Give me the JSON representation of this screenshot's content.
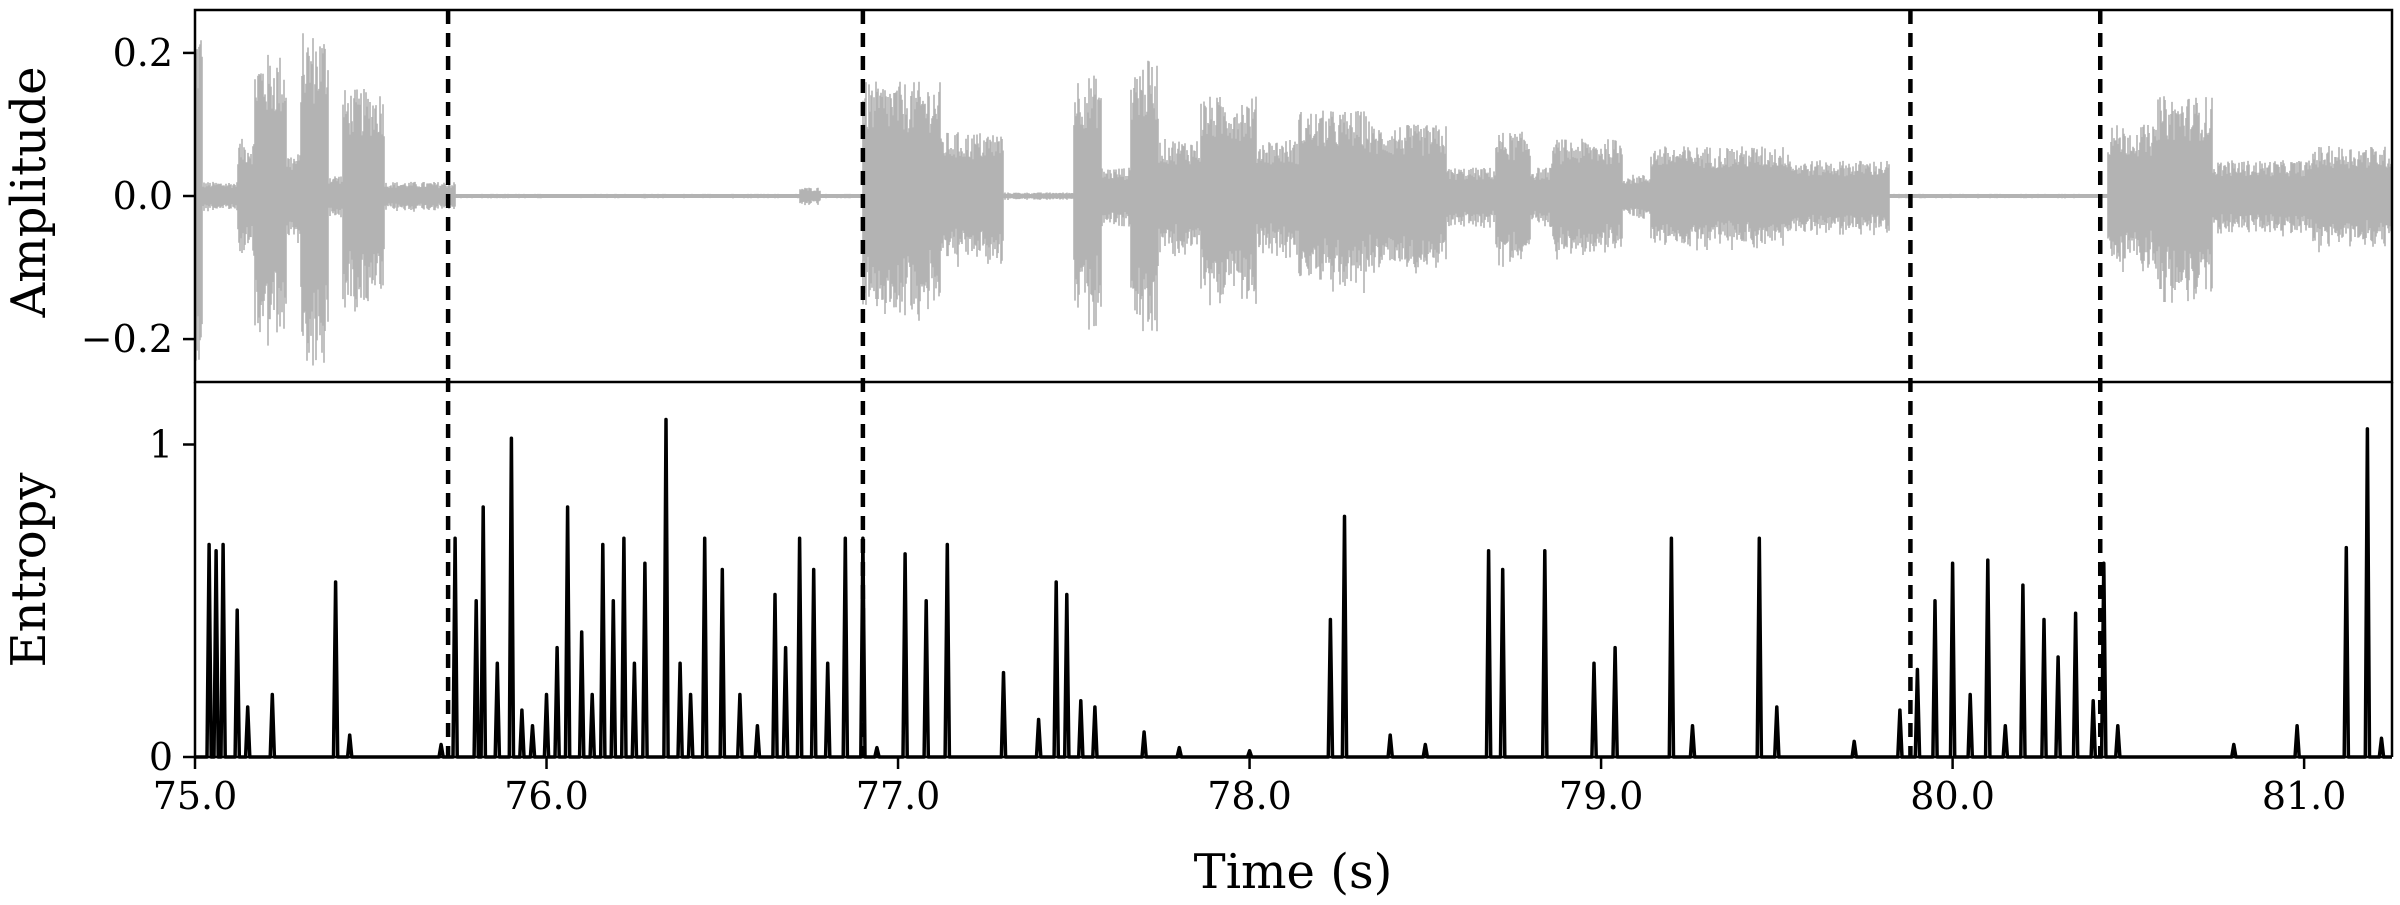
{
  "chart_data": [
    {
      "type": "line",
      "panel": "waveform",
      "ylabel": "Amplitude",
      "xlim": [
        75.0,
        81.25
      ],
      "ylim": [
        -0.26,
        0.26
      ],
      "yticks": [
        {
          "value": -0.2,
          "label": "−0.2"
        },
        {
          "value": 0.0,
          "label": "0.0"
        },
        {
          "value": 0.2,
          "label": "0.2"
        }
      ],
      "line_color": "#b3b3b3",
      "grid": false,
      "segments": [
        {
          "start": 75.0,
          "end": 75.02,
          "amp": 0.24
        },
        {
          "start": 75.02,
          "end": 75.12,
          "amp": 0.02
        },
        {
          "start": 75.12,
          "end": 75.17,
          "amp": 0.08
        },
        {
          "start": 75.17,
          "end": 75.26,
          "amp": 0.2
        },
        {
          "start": 75.26,
          "end": 75.3,
          "amp": 0.06
        },
        {
          "start": 75.3,
          "end": 75.38,
          "amp": 0.23
        },
        {
          "start": 75.38,
          "end": 75.42,
          "amp": 0.03
        },
        {
          "start": 75.42,
          "end": 75.54,
          "amp": 0.15
        },
        {
          "start": 75.54,
          "end": 75.74,
          "amp": 0.02
        },
        {
          "start": 75.74,
          "end": 76.72,
          "amp": 0.003
        },
        {
          "start": 76.72,
          "end": 76.78,
          "amp": 0.012
        },
        {
          "start": 76.78,
          "end": 76.9,
          "amp": 0.003
        },
        {
          "start": 76.9,
          "end": 77.12,
          "amp": 0.16
        },
        {
          "start": 77.12,
          "end": 77.3,
          "amp": 0.09
        },
        {
          "start": 77.3,
          "end": 77.5,
          "amp": 0.005
        },
        {
          "start": 77.5,
          "end": 77.58,
          "amp": 0.17
        },
        {
          "start": 77.58,
          "end": 77.66,
          "amp": 0.04
        },
        {
          "start": 77.66,
          "end": 77.74,
          "amp": 0.19
        },
        {
          "start": 77.74,
          "end": 77.86,
          "amp": 0.08
        },
        {
          "start": 77.86,
          "end": 78.02,
          "amp": 0.14
        },
        {
          "start": 78.02,
          "end": 78.14,
          "amp": 0.08
        },
        {
          "start": 78.14,
          "end": 78.34,
          "amp": 0.12
        },
        {
          "start": 78.34,
          "end": 78.56,
          "amp": 0.1
        },
        {
          "start": 78.56,
          "end": 78.7,
          "amp": 0.04
        },
        {
          "start": 78.7,
          "end": 78.8,
          "amp": 0.09
        },
        {
          "start": 78.8,
          "end": 78.86,
          "amp": 0.04
        },
        {
          "start": 78.86,
          "end": 79.06,
          "amp": 0.08
        },
        {
          "start": 79.06,
          "end": 79.14,
          "amp": 0.03
        },
        {
          "start": 79.14,
          "end": 79.38,
          "amp": 0.07
        },
        {
          "start": 79.38,
          "end": 79.54,
          "amp": 0.07
        },
        {
          "start": 79.54,
          "end": 79.82,
          "amp": 0.05
        },
        {
          "start": 79.82,
          "end": 80.44,
          "amp": 0.003
        },
        {
          "start": 80.44,
          "end": 80.58,
          "amp": 0.1
        },
        {
          "start": 80.58,
          "end": 80.74,
          "amp": 0.14
        },
        {
          "start": 80.74,
          "end": 81.02,
          "amp": 0.05
        },
        {
          "start": 81.02,
          "end": 81.25,
          "amp": 0.07
        }
      ]
    },
    {
      "type": "line",
      "panel": "entropy",
      "xlabel": "Time (s)",
      "ylabel": "Entropy",
      "xlim": [
        75.0,
        81.25
      ],
      "ylim": [
        0,
        1.2
      ],
      "xticks": [
        {
          "value": 75.0,
          "label": "75.0"
        },
        {
          "value": 76.0,
          "label": "76.0"
        },
        {
          "value": 77.0,
          "label": "77.0"
        },
        {
          "value": 78.0,
          "label": "78.0"
        },
        {
          "value": 79.0,
          "label": "79.0"
        },
        {
          "value": 80.0,
          "label": "80.0"
        },
        {
          "value": 81.0,
          "label": "81.0"
        }
      ],
      "yticks": [
        {
          "value": 0,
          "label": "0"
        },
        {
          "value": 1,
          "label": "1"
        }
      ],
      "line_color": "#000000",
      "grid": false,
      "spikes": [
        [
          75.04,
          0.68
        ],
        [
          75.06,
          0.66
        ],
        [
          75.08,
          0.68
        ],
        [
          75.12,
          0.47
        ],
        [
          75.15,
          0.16
        ],
        [
          75.22,
          0.2
        ],
        [
          75.4,
          0.56
        ],
        [
          75.44,
          0.07
        ],
        [
          75.7,
          0.04
        ],
        [
          75.74,
          0.7
        ],
        [
          75.8,
          0.5
        ],
        [
          75.82,
          0.8
        ],
        [
          75.86,
          0.3
        ],
        [
          75.9,
          1.02
        ],
        [
          75.93,
          0.15
        ],
        [
          75.96,
          0.1
        ],
        [
          76.0,
          0.2
        ],
        [
          76.03,
          0.35
        ],
        [
          76.06,
          0.8
        ],
        [
          76.1,
          0.4
        ],
        [
          76.13,
          0.2
        ],
        [
          76.16,
          0.68
        ],
        [
          76.19,
          0.5
        ],
        [
          76.22,
          0.7
        ],
        [
          76.25,
          0.3
        ],
        [
          76.28,
          0.62
        ],
        [
          76.34,
          1.08
        ],
        [
          76.38,
          0.3
        ],
        [
          76.41,
          0.2
        ],
        [
          76.45,
          0.7
        ],
        [
          76.5,
          0.6
        ],
        [
          76.55,
          0.2
        ],
        [
          76.6,
          0.1
        ],
        [
          76.65,
          0.52
        ],
        [
          76.68,
          0.35
        ],
        [
          76.72,
          0.7
        ],
        [
          76.76,
          0.6
        ],
        [
          76.8,
          0.3
        ],
        [
          76.85,
          0.7
        ],
        [
          76.9,
          0.7
        ],
        [
          76.94,
          0.03
        ],
        [
          77.02,
          0.65
        ],
        [
          77.08,
          0.5
        ],
        [
          77.14,
          0.68
        ],
        [
          77.3,
          0.27
        ],
        [
          77.4,
          0.12
        ],
        [
          77.45,
          0.56
        ],
        [
          77.48,
          0.52
        ],
        [
          77.52,
          0.18
        ],
        [
          77.56,
          0.16
        ],
        [
          77.7,
          0.08
        ],
        [
          77.8,
          0.03
        ],
        [
          78.0,
          0.02
        ],
        [
          78.23,
          0.44
        ],
        [
          78.27,
          0.77
        ],
        [
          78.4,
          0.07
        ],
        [
          78.5,
          0.04
        ],
        [
          78.68,
          0.66
        ],
        [
          78.72,
          0.6
        ],
        [
          78.84,
          0.66
        ],
        [
          78.98,
          0.3
        ],
        [
          79.04,
          0.35
        ],
        [
          79.2,
          0.7
        ],
        [
          79.26,
          0.1
        ],
        [
          79.45,
          0.7
        ],
        [
          79.5,
          0.16
        ],
        [
          79.72,
          0.05
        ],
        [
          79.85,
          0.15
        ],
        [
          79.9,
          0.28
        ],
        [
          79.95,
          0.5
        ],
        [
          80.0,
          0.62
        ],
        [
          80.05,
          0.2
        ],
        [
          80.1,
          0.63
        ],
        [
          80.15,
          0.1
        ],
        [
          80.2,
          0.55
        ],
        [
          80.26,
          0.44
        ],
        [
          80.3,
          0.32
        ],
        [
          80.35,
          0.46
        ],
        [
          80.4,
          0.18
        ],
        [
          80.43,
          0.62
        ],
        [
          80.47,
          0.1
        ],
        [
          80.8,
          0.04
        ],
        [
          80.98,
          0.1
        ],
        [
          81.12,
          0.67
        ],
        [
          81.18,
          1.05
        ],
        [
          81.22,
          0.06
        ]
      ]
    }
  ],
  "markers": {
    "style": "dashed",
    "x": [
      75.72,
      76.9,
      79.88,
      80.42
    ]
  }
}
